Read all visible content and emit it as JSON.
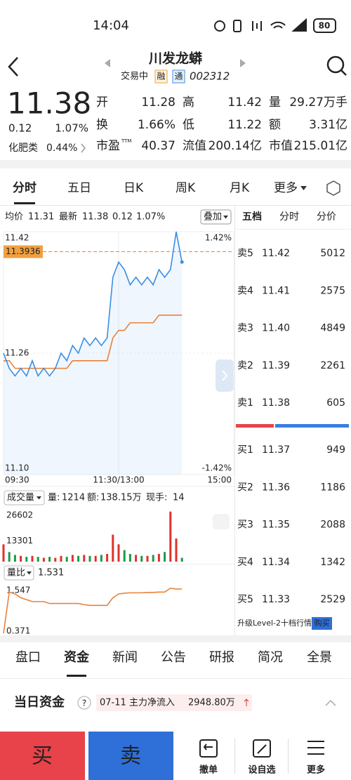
{
  "status_bar": {
    "time": "14:04",
    "battery": "80"
  },
  "header": {
    "title": "川发龙蟒",
    "status": "交易中",
    "badges": [
      "融",
      "通"
    ],
    "code": "002312"
  },
  "quote": {
    "price": "11.38",
    "change": "0.12",
    "change_pct": "1.07%",
    "sector": "化肥类",
    "sector_pct": "0.44%",
    "up_color": "#e0312a",
    "fields": [
      {
        "label": "开",
        "value": "11.28",
        "color": "#e0312a"
      },
      {
        "label": "高",
        "value": "11.42",
        "color": "#e0312a"
      },
      {
        "label": "量",
        "value": "29.27万手"
      },
      {
        "label": "换",
        "value": "1.66%"
      },
      {
        "label": "低",
        "value": "11.22",
        "color": "#1a9a4a"
      },
      {
        "label": "额",
        "value": "3.31亿"
      },
      {
        "label": "市盈",
        "sup": "TTM",
        "value": "40.37"
      },
      {
        "label": "流值",
        "value": "200.14亿"
      },
      {
        "label": "市值",
        "value": "215.01亿"
      }
    ]
  },
  "tabs": {
    "items": [
      "分时",
      "五日",
      "日K",
      "周K",
      "月K",
      "更多"
    ],
    "selected": 0
  },
  "intraday": {
    "avg_label": "均价",
    "avg_price": "11.31",
    "latest_label": "最新",
    "latest": "11.38",
    "change": "0.12",
    "change_pct": "1.07%",
    "overlay": "叠加",
    "ylim": [
      11.1,
      11.42
    ],
    "yticks": [
      11.42,
      11.26,
      {
        "value": 11.1,
        "label": "11.10"
      }
    ],
    "y2lim": [
      -1.42,
      1.42
    ],
    "y2ticks": [
      {
        "value": 1.42,
        "label": "1.42%"
      },
      {
        "value": -1.42,
        "label": "-1.42%"
      }
    ],
    "marker": 11.3936,
    "xticks": [
      "09:30",
      "11:30/13:00",
      "15:00"
    ],
    "price_color": "#3a8ee6",
    "avg_color": "#e8823a",
    "price": [
      11.26,
      11.24,
      11.23,
      11.24,
      11.23,
      11.25,
      11.23,
      11.24,
      11.23,
      11.24,
      11.26,
      11.25,
      11.27,
      11.26,
      11.28,
      11.27,
      11.28,
      11.27,
      11.28,
      11.36,
      11.38,
      11.37,
      11.35,
      11.36,
      11.35,
      11.36,
      11.35,
      11.37,
      11.36,
      11.37,
      11.42,
      11.38
    ],
    "avg": [
      11.25,
      11.25,
      11.24,
      11.24,
      11.24,
      11.24,
      11.24,
      11.24,
      11.24,
      11.24,
      11.24,
      11.24,
      11.25,
      11.25,
      11.25,
      11.25,
      11.25,
      11.25,
      11.25,
      11.28,
      11.29,
      11.29,
      11.3,
      11.3,
      11.3,
      11.3,
      11.3,
      11.31,
      11.31,
      11.31,
      11.31,
      11.31
    ]
  },
  "volume": {
    "label": "成交量",
    "vol_label": "量:",
    "vol": "1214",
    "amount_label": "额:",
    "amount": "138.15万",
    "hand_label": "现手:",
    "hand": "14",
    "ylim": [
      0,
      26602
    ],
    "yticks": [
      26602,
      13301
    ],
    "values": [
      9000,
      5000,
      3500,
      3000,
      2500,
      3000,
      2500,
      2000,
      2500,
      2000,
      3000,
      2500,
      3500,
      3000,
      3500,
      3000,
      3000,
      3500,
      4000,
      14000,
      9000,
      6000,
      4000,
      3500,
      3000,
      3000,
      3500,
      4000,
      5000,
      26000,
      12000,
      2000
    ]
  },
  "ratio": {
    "label": "量比",
    "value": "1.531",
    "color": "#e8823a",
    "ylim": [
      0.371,
      1.547
    ],
    "yticks": [
      1.547,
      0.371
    ],
    "values": [
      0.371,
      1.45,
      1.4,
      1.3,
      1.25,
      1.2,
      1.2,
      1.2,
      1.15,
      1.15,
      1.15,
      1.15,
      1.15,
      1.15,
      1.12,
      1.1,
      1.1,
      1.1,
      1.1,
      1.3,
      1.4,
      1.42,
      1.43,
      1.43,
      1.43,
      1.44,
      1.44,
      1.45,
      1.45,
      1.55,
      1.53,
      1.531
    ]
  },
  "order_book": {
    "tabs": [
      "五档",
      "分时",
      "分价"
    ],
    "price_color": "#e0312a",
    "asks": [
      {
        "label": "卖5",
        "price": "11.42",
        "volume": "5012"
      },
      {
        "label": "卖4",
        "price": "11.41",
        "volume": "2575"
      },
      {
        "label": "卖3",
        "price": "11.40",
        "volume": "4849"
      },
      {
        "label": "卖2",
        "price": "11.39",
        "volume": "2261"
      },
      {
        "label": "卖1",
        "price": "11.38",
        "volume": "605"
      }
    ],
    "bids": [
      {
        "label": "买1",
        "price": "11.37",
        "volume": "949"
      },
      {
        "label": "买2",
        "price": "11.36",
        "volume": "1186"
      },
      {
        "label": "买3",
        "price": "11.35",
        "volume": "2088"
      },
      {
        "label": "买4",
        "price": "11.34",
        "volume": "1342"
      },
      {
        "label": "买5",
        "price": "11.33",
        "volume": "2529"
      }
    ],
    "upgrade": "升级Level-2十档行情",
    "buy_button": "购买"
  },
  "bottom_tabs": {
    "items": [
      "盘口",
      "资金",
      "新闻",
      "公告",
      "研报",
      "简况",
      "全景"
    ],
    "selected": 1
  },
  "fund": {
    "title": "当日资金",
    "help": "?",
    "date": "07-11",
    "label": "主力净流入",
    "amount": "2948.80万"
  },
  "actions": {
    "buy": "买",
    "sell": "卖",
    "items": [
      "撤单",
      "设自选",
      "更多"
    ]
  }
}
